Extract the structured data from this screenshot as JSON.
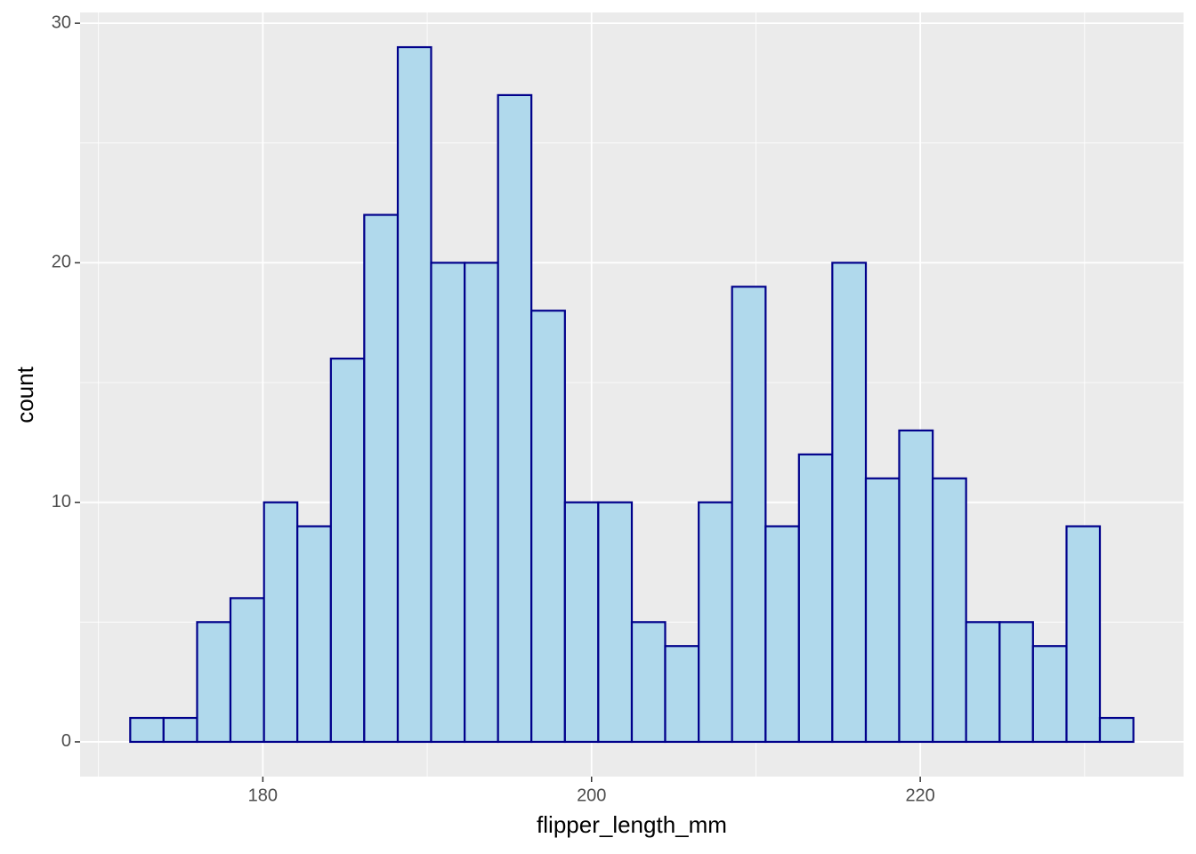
{
  "chart_data": {
    "type": "histogram",
    "x_label": "flipper_length_mm",
    "y_label": "count",
    "bins": [
      171.93,
      173.96,
      176.0,
      178.03,
      180.07,
      182.1,
      184.14,
      186.17,
      188.21,
      190.24,
      192.28,
      194.31,
      196.34,
      198.38,
      200.41,
      202.45,
      204.48,
      206.52,
      208.55,
      210.59,
      212.62,
      214.65,
      216.69,
      218.72,
      220.76,
      222.79,
      224.83,
      226.86,
      228.9,
      230.93,
      232.97
    ],
    "values": [
      1,
      1,
      5,
      6,
      10,
      9,
      16,
      22,
      29,
      20,
      20,
      27,
      18,
      10,
      10,
      5,
      4,
      10,
      19,
      9,
      12,
      20,
      11,
      13,
      11,
      5,
      5,
      4,
      9,
      1
    ],
    "color": "#b0d9ec",
    "edge_color": "#00008b",
    "xlim": [
      168.88,
      236.02
    ],
    "xticks": [
      180,
      200,
      220
    ],
    "ylim": [
      -1.45,
      30.45
    ],
    "yticks": [
      0,
      10,
      20,
      30
    ],
    "grid": true
  }
}
